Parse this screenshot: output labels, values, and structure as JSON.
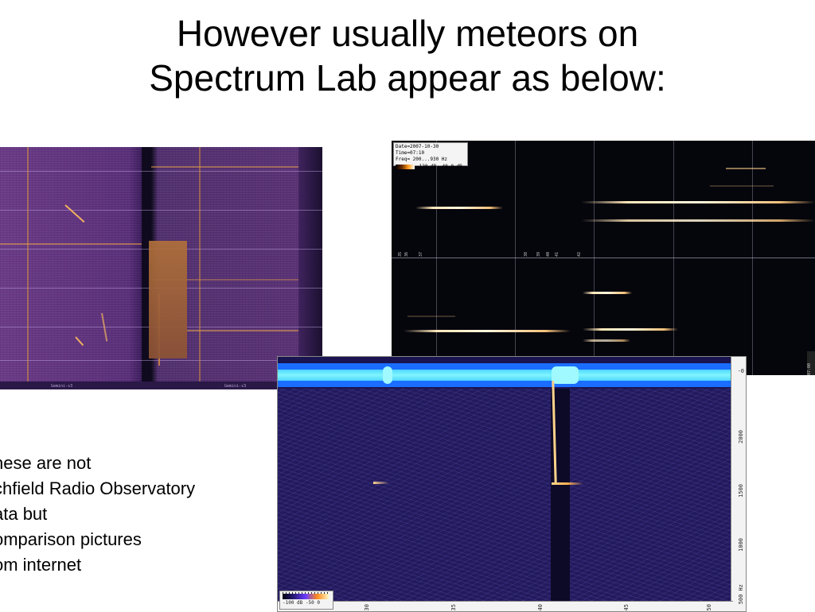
{
  "title": {
    "line1": "However usually meteors on",
    "line2": "Spectrum Lab appear as below:"
  },
  "note": {
    "lines": [
      "hese are not",
      "chfield Radio Observatory",
      "ata but",
      "omparison pictures",
      "om internet"
    ]
  },
  "panel_dark": {
    "header_line1": "Date=2007-10-30 Time=07:10",
    "header_line2": "Freq= 200...930 Hz",
    "colorbar_label": "-120 dB -40.0 dB",
    "tick_labels": [
      "35",
      "36",
      "37",
      "38",
      "39",
      "40",
      "41",
      "42"
    ],
    "side_label": "07:00"
  },
  "panel_blue": {
    "zero_label": "-0",
    "y_labels": [
      "2000",
      "1500",
      "1000",
      "500 Hz"
    ],
    "x_labels": [
      "30",
      "35",
      "40",
      "45",
      "50"
    ],
    "legend_text": "-100 dB  -50   0"
  },
  "panel_purple": {
    "bottom_labels": [
      "Gemini-s3",
      "Gemini-s3"
    ]
  },
  "colors": {
    "background": "#ffffff",
    "meteor_trail": "#ffd38a",
    "waveform": "#4fd6ff"
  }
}
